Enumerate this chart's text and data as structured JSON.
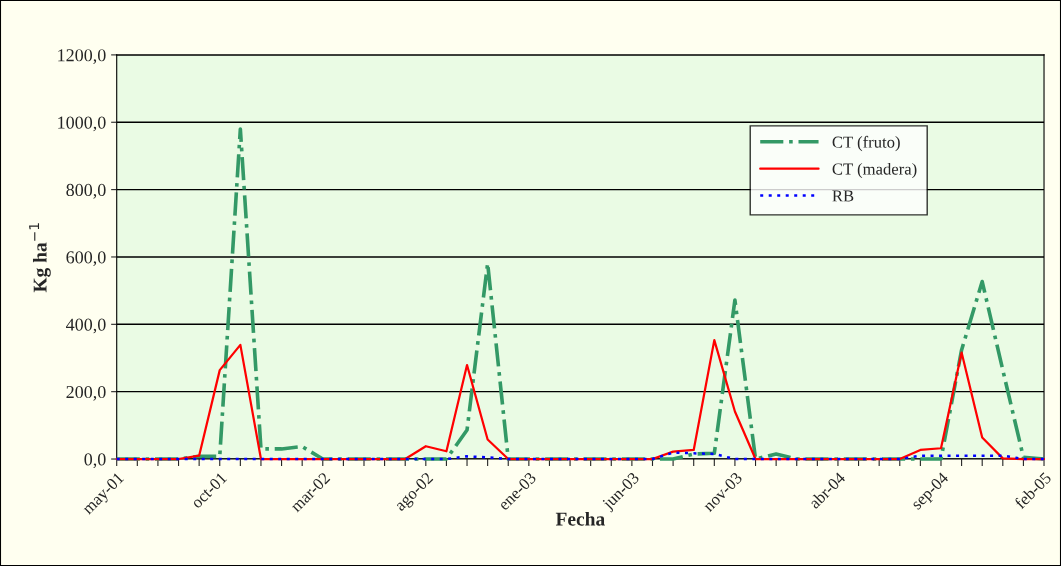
{
  "chart_data": {
    "type": "line",
    "xlabel": "Fecha",
    "ylabel": "Kg ha$^{−1}$",
    "categories": [
      "may-01",
      null,
      null,
      null,
      null,
      "oct-01",
      null,
      null,
      null,
      null,
      "mar-02",
      null,
      null,
      null,
      null,
      "ago-02",
      null,
      null,
      null,
      null,
      "ene-03",
      null,
      null,
      null,
      null,
      "jun-03",
      null,
      null,
      null,
      null,
      "nov-03",
      null,
      null,
      null,
      null,
      "abr-04",
      null,
      null,
      null,
      null,
      "sep-04",
      null,
      null,
      null,
      null,
      "feb-05"
    ],
    "series": [
      {
        "name": "CT (fruto)",
        "color": "#339966",
        "line_style": "dashed",
        "values": [
          0,
          0,
          0,
          0,
          8,
          8,
          980,
          30,
          30,
          37,
          0,
          0,
          0,
          0,
          0,
          0,
          0,
          86,
          581,
          0,
          0,
          0,
          0,
          0,
          0,
          0,
          0,
          0,
          15,
          17,
          472,
          0,
          15,
          0,
          0,
          0,
          0,
          0,
          0,
          0,
          0,
          324,
          527,
          264,
          5,
          0
        ]
      },
      {
        "name": "CT (madera)",
        "color": "#ff0000",
        "line_style": "solid",
        "values": [
          0,
          0,
          0,
          0,
          10,
          264,
          339,
          0,
          0,
          0,
          0,
          0,
          0,
          0,
          0,
          38,
          23,
          279,
          58,
          0,
          0,
          0,
          0,
          0,
          0,
          0,
          0,
          22,
          27,
          353,
          141,
          0,
          0,
          0,
          0,
          0,
          0,
          0,
          0,
          27,
          32,
          316,
          64,
          2,
          0,
          0
        ]
      },
      {
        "name": "RB",
        "color": "#0000ff",
        "line_style": "dotted",
        "values": [
          0,
          0,
          0,
          0,
          0,
          0,
          0,
          0,
          0,
          0,
          0,
          0,
          0,
          0,
          0,
          0,
          0,
          8,
          5,
          0,
          0,
          0,
          0,
          0,
          0,
          0,
          0,
          19,
          17,
          15,
          0,
          0,
          0,
          0,
          0,
          0,
          0,
          0,
          0,
          10,
          10,
          10,
          10,
          10,
          0,
          0
        ]
      }
    ],
    "ylim": [
      0,
      1200
    ],
    "yticks": [
      {
        "value": 0,
        "label": "0,0"
      },
      {
        "value": 200,
        "label": "200,0"
      },
      {
        "value": 400,
        "label": "400,0"
      },
      {
        "value": 600,
        "label": "600,0"
      },
      {
        "value": 800,
        "label": "800,0"
      },
      {
        "value": 1000,
        "label": "1000,0"
      },
      {
        "value": 1200,
        "label": "1200,0"
      }
    ],
    "grid": "y",
    "legend": "top right",
    "marker": "none"
  }
}
